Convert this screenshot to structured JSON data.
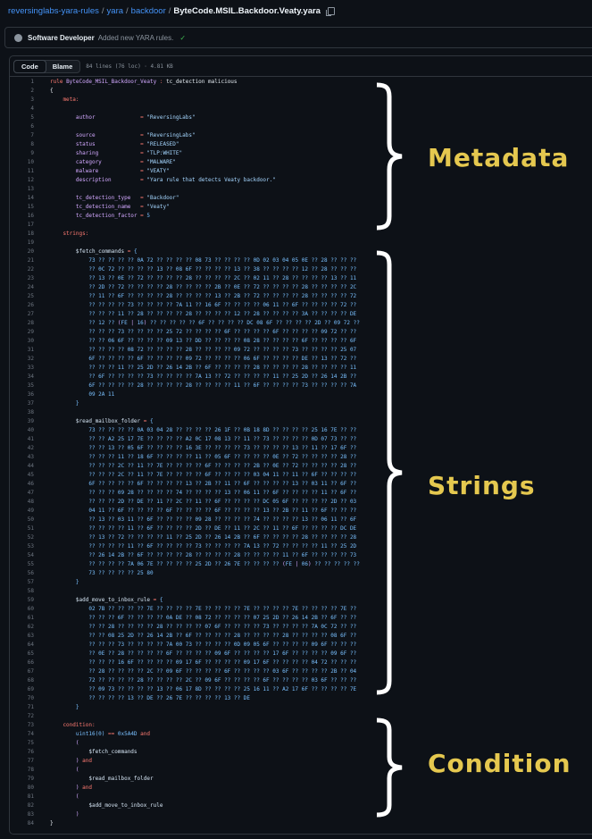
{
  "breadcrumb": {
    "repo": "reversinglabs-yara-rules",
    "dir1": "yara",
    "dir2": "backdoor",
    "file": "ByteCode.MSIL.Backdoor.Veaty.yara",
    "sep": "/"
  },
  "commit": {
    "author": "Software Developer",
    "message": "Added new YARA rules.",
    "check": "✓"
  },
  "code_header": {
    "tabs": [
      "Code",
      "Blame"
    ],
    "active_tab": "Code",
    "info": "84 lines (76 loc) · 4.81 KB"
  },
  "annotations": {
    "metadata": "Metadata",
    "strings": "Strings",
    "condition": "Condition",
    "color": "#e5c84f"
  },
  "code_lines": [
    [
      [
        "k",
        "rule "
      ],
      [
        "n",
        "ByteCode_MSIL_Backdoor_Veaty"
      ],
      [
        "o",
        " : "
      ],
      [
        "p",
        "tc_detection malicious"
      ]
    ],
    [
      [
        "p",
        "{"
      ]
    ],
    [
      [
        "k",
        "    meta:"
      ]
    ],
    [],
    [
      [
        "n",
        "        author              "
      ],
      [
        "o",
        "= "
      ],
      [
        "s",
        "\"ReversingLabs\""
      ]
    ],
    [],
    [
      [
        "n",
        "        source              "
      ],
      [
        "o",
        "= "
      ],
      [
        "s",
        "\"ReversingLabs\""
      ]
    ],
    [
      [
        "n",
        "        status              "
      ],
      [
        "o",
        "= "
      ],
      [
        "s",
        "\"RELEASED\""
      ]
    ],
    [
      [
        "n",
        "        sharing             "
      ],
      [
        "o",
        "= "
      ],
      [
        "s",
        "\"TLP:WHITE\""
      ]
    ],
    [
      [
        "n",
        "        category            "
      ],
      [
        "o",
        "= "
      ],
      [
        "s",
        "\"MALWARE\""
      ]
    ],
    [
      [
        "n",
        "        malware             "
      ],
      [
        "o",
        "= "
      ],
      [
        "s",
        "\"VEATY\""
      ]
    ],
    [
      [
        "n",
        "        description         "
      ],
      [
        "o",
        "= "
      ],
      [
        "s",
        "\"Yara rule that detects Veaty backdoor.\""
      ]
    ],
    [],
    [
      [
        "n",
        "        tc_detection_type   "
      ],
      [
        "o",
        "= "
      ],
      [
        "s",
        "\"Backdoor\""
      ]
    ],
    [
      [
        "n",
        "        tc_detection_name   "
      ],
      [
        "o",
        "= "
      ],
      [
        "s",
        "\"Veaty\""
      ]
    ],
    [
      [
        "n",
        "        tc_detection_factor "
      ],
      [
        "o",
        "= "
      ],
      [
        "h",
        "5"
      ]
    ],
    [],
    [
      [
        "k",
        "    strings:"
      ]
    ],
    [],
    [
      [
        "v",
        "        $fetch_commands "
      ],
      [
        "o",
        "= "
      ],
      [
        "b",
        "{"
      ]
    ],
    [
      [
        "h",
        "            73 ?? ?? ?? ?? 0A 72 ?? ?? ?? ?? 08 73 ?? ?? ?? ?? 0D 02 03 04 05 0E ?? 28 ?? ?? ??"
      ]
    ],
    [
      [
        "h",
        "            ?? 0C 72 ?? ?? ?? ?? 13 ?? 08 6F ?? ?? ?? ?? 13 ?? 38 ?? ?? ?? ?? 12 ?? 28 ?? ?? ??"
      ]
    ],
    [
      [
        "h",
        "            ?? 13 ?? 0E ?? 72 ?? ?? ?? ?? 28 ?? ?? ?? ?? 2C ?? 02 11 ?? 28 ?? ?? ?? ?? 13 ?? 11"
      ]
    ],
    [
      [
        "h",
        "            ?? 2D ?? 72 ?? ?? ?? ?? 28 ?? ?? ?? ?? 2B ?? 0E ?? 72 ?? ?? ?? ?? 28 ?? ?? ?? ?? 2C"
      ]
    ],
    [
      [
        "h",
        "            ?? 11 ?? 6F ?? ?? ?? ?? 28 ?? ?? ?? ?? 13 ?? 2B ?? 72 ?? ?? ?? ?? 28 ?? ?? ?? ?? 72"
      ]
    ],
    [
      [
        "h",
        "            ?? ?? ?? ?? 73 ?? ?? ?? ?? 7A 11 ?? 16 6F ?? ?? ?? ?? 06 11 ?? 6F ?? ?? ?? ?? 72 ??"
      ]
    ],
    [
      [
        "h",
        "            ?? ?? ?? 11 ?? 28 ?? ?? ?? ?? 28 ?? ?? ?? ?? 12 ?? 28 ?? ?? ?? ?? 3A ?? ?? ?? ?? DE"
      ]
    ],
    [
      [
        "h",
        "            ?? 12 ?? "
      ],
      [
        "q",
        "("
      ],
      [
        "h",
        "FE "
      ],
      [
        "q",
        "|"
      ],
      [
        "h",
        " 16"
      ],
      [
        "q",
        ")"
      ],
      [
        "h",
        " ?? ?? ?? ?? ?? 6F ?? ?? ?? ?? DC 08 6F ?? ?? ?? ?? 2D ?? 09 72 ??"
      ]
    ],
    [
      [
        "h",
        "            ?? ?? ?? 73 ?? ?? ?? ?? 25 72 ?? ?? ?? ?? 6F ?? ?? ?? ?? 6F ?? ?? ?? ?? 09 72 ?? ??"
      ]
    ],
    [
      [
        "h",
        "            ?? ?? 06 6F ?? ?? ?? ?? 09 13 ?? DD ?? ?? ?? ?? 08 28 ?? ?? ?? ?? 6F ?? ?? ?? ?? 6F"
      ]
    ],
    [
      [
        "h",
        "            ?? ?? ?? ?? 08 72 ?? ?? ?? ?? 28 ?? ?? ?? ?? 09 72 ?? ?? ?? ?? 73 ?? ?? ?? ?? 25 07"
      ]
    ],
    [
      [
        "h",
        "            6F ?? ?? ?? ?? 6F ?? ?? ?? ?? 09 72 ?? ?? ?? ?? 06 6F ?? ?? ?? ?? DE ?? 13 ?? 72 ??"
      ]
    ],
    [
      [
        "h",
        "            ?? ?? ?? 11 ?? 25 2D ?? 26 14 2B ?? 6F ?? ?? ?? ?? 28 ?? ?? ?? ?? 28 ?? ?? ?? ?? 11"
      ]
    ],
    [
      [
        "h",
        "            ?? 6F ?? ?? ?? ?? 73 ?? ?? ?? ?? 7A 13 ?? 72 ?? ?? ?? ?? 11 ?? 25 2D ?? 26 14 2B ??"
      ]
    ],
    [
      [
        "h",
        "            6F ?? ?? ?? ?? 28 ?? ?? ?? ?? 28 ?? ?? ?? ?? 11 ?? 6F ?? ?? ?? ?? 73 ?? ?? ?? ?? 7A"
      ]
    ],
    [
      [
        "h",
        "            09 2A 11"
      ]
    ],
    [
      [
        "b",
        "        }"
      ]
    ],
    [],
    [
      [
        "v",
        "        $read_mailbox_folder "
      ],
      [
        "o",
        "= "
      ],
      [
        "b",
        "{"
      ]
    ],
    [
      [
        "h",
        "            73 ?? ?? ?? ?? 0A 03 04 28 ?? ?? ?? ?? 26 1F ?? 0B 18 8D ?? ?? ?? ?? 25 16 7E ?? ??"
      ]
    ],
    [
      [
        "h",
        "            ?? ?? A2 25 17 7E ?? ?? ?? ?? A2 0C 17 08 13 ?? 11 ?? 73 ?? ?? ?? ?? 0D 07 73 ?? ??"
      ]
    ],
    [
      [
        "h",
        "            ?? ?? 13 ?? 05 6F ?? ?? ?? ?? 16 3E ?? ?? ?? ?? 73 ?? ?? ?? ?? 13 ?? 11 ?? 17 6F ??"
      ]
    ],
    [
      [
        "h",
        "            ?? ?? ?? 11 ?? 18 6F ?? ?? ?? ?? 11 ?? 05 6F ?? ?? ?? ?? 0E ?? 72 ?? ?? ?? ?? 28 ??"
      ]
    ],
    [
      [
        "h",
        "            ?? ?? ?? 2C ?? 11 ?? 7E ?? ?? ?? ?? 6F ?? ?? ?? ?? 2B ?? 0E ?? 72 ?? ?? ?? ?? 28 ??"
      ]
    ],
    [
      [
        "h",
        "            ?? ?? ?? 2C ?? 11 ?? 7E ?? ?? ?? ?? 6F ?? ?? ?? ?? 03 04 11 ?? 11 ?? 6F ?? ?? ?? ??"
      ]
    ],
    [
      [
        "h",
        "            6F ?? ?? ?? ?? 6F ?? ?? ?? ?? 13 ?? 2B ?? 11 ?? 6F ?? ?? ?? ?? 13 ?? 03 11 ?? 6F ??"
      ]
    ],
    [
      [
        "h",
        "            ?? ?? ?? 09 28 ?? ?? ?? ?? 74 ?? ?? ?? ?? 13 ?? 06 11 ?? 6F ?? ?? ?? ?? 11 ?? 6F ??"
      ]
    ],
    [
      [
        "h",
        "            ?? ?? ?? 2D ?? DE ?? 11 ?? 2C ?? 11 ?? 6F ?? ?? ?? ?? DC 05 6F ?? ?? ?? ?? 2D ?? 03"
      ]
    ],
    [
      [
        "h",
        "            04 11 ?? 6F ?? ?? ?? ?? 6F ?? ?? ?? ?? 6F ?? ?? ?? ?? 13 ?? 2B ?? 11 ?? 6F ?? ?? ??"
      ]
    ],
    [
      [
        "h",
        "            ?? 13 ?? 03 11 ?? 6F ?? ?? ?? ?? 09 28 ?? ?? ?? ?? 74 ?? ?? ?? ?? 13 ?? 06 11 ?? 6F"
      ]
    ],
    [
      [
        "h",
        "            ?? ?? ?? ?? 11 ?? 6F ?? ?? ?? ?? 2D ?? DE ?? 11 ?? 2C ?? 11 ?? 6F ?? ?? ?? ?? DC DE"
      ]
    ],
    [
      [
        "h",
        "            ?? 13 ?? 72 ?? ?? ?? ?? 11 ?? 25 2D ?? 26 14 2B ?? 6F ?? ?? ?? ?? 28 ?? ?? ?? ?? 28"
      ]
    ],
    [
      [
        "h",
        "            ?? ?? ?? ?? 11 ?? 6F ?? ?? ?? ?? 73 ?? ?? ?? ?? 7A 13 ?? 72 ?? ?? ?? ?? 11 ?? 25 2D"
      ]
    ],
    [
      [
        "h",
        "            ?? 26 14 2B ?? 6F ?? ?? ?? ?? 28 ?? ?? ?? ?? 28 ?? ?? ?? ?? 11 ?? 6F ?? ?? ?? ?? 73"
      ]
    ],
    [
      [
        "h",
        "            ?? ?? ?? ?? 7A 06 7E ?? ?? ?? ?? 25 2D ?? 26 7E ?? ?? ?? ?? "
      ],
      [
        "q",
        "("
      ],
      [
        "h",
        "FE "
      ],
      [
        "q",
        "|"
      ],
      [
        "h",
        " 06"
      ],
      [
        "q",
        ")"
      ],
      [
        "h",
        " ?? ?? ?? ?? ??"
      ]
    ],
    [
      [
        "h",
        "            73 ?? ?? ?? ?? 25 80"
      ]
    ],
    [
      [
        "b",
        "        }"
      ]
    ],
    [],
    [
      [
        "v",
        "        $add_move_to_inbox_rule "
      ],
      [
        "o",
        "= "
      ],
      [
        "b",
        "{"
      ]
    ],
    [
      [
        "h",
        "            02 7B ?? ?? ?? ?? 7E ?? ?? ?? ?? 7E ?? ?? ?? ?? 7E ?? ?? ?? ?? 7E ?? ?? ?? ?? 7E ??"
      ]
    ],
    [
      [
        "h",
        "            ?? ?? ?? 6F ?? ?? ?? ?? 0A DE ?? 08 72 ?? ?? ?? ?? 07 25 2D ?? 26 14 2B ?? 6F ?? ??"
      ]
    ],
    [
      [
        "h",
        "            ?? ?? 28 ?? ?? ?? ?? 28 ?? ?? ?? ?? 07 6F ?? ?? ?? ?? 73 ?? ?? ?? ?? 7A 0C 72 ?? ??"
      ]
    ],
    [
      [
        "h",
        "            ?? ?? 08 25 2D ?? 26 14 2B ?? 6F ?? ?? ?? ?? 28 ?? ?? ?? ?? 28 ?? ?? ?? ?? 08 6F ??"
      ]
    ],
    [
      [
        "h",
        "            ?? ?? ?? 73 ?? ?? ?? ?? 7A 00 73 ?? ?? ?? ?? 0D 09 05 6F ?? ?? ?? ?? 09 6F ?? ?? ??"
      ]
    ],
    [
      [
        "h",
        "            ?? 0E ?? 28 ?? ?? ?? ?? 6F ?? ?? ?? ?? 09 6F ?? ?? ?? ?? 17 6F ?? ?? ?? ?? 09 6F ??"
      ]
    ],
    [
      [
        "h",
        "            ?? ?? ?? 16 6F ?? ?? ?? ?? 09 17 6F ?? ?? ?? ?? 09 17 6F ?? ?? ?? ?? 04 72 ?? ?? ??"
      ]
    ],
    [
      [
        "h",
        "            ?? 28 ?? ?? ?? ?? 2C ?? 09 6F ?? ?? ?? ?? 6F ?? ?? ?? ?? 03 6F ?? ?? ?? ?? 2B ?? 04"
      ]
    ],
    [
      [
        "h",
        "            72 ?? ?? ?? ?? 28 ?? ?? ?? ?? 2C ?? 09 6F ?? ?? ?? ?? 6F ?? ?? ?? ?? 03 6F ?? ?? ??"
      ]
    ],
    [
      [
        "h",
        "            ?? 09 73 ?? ?? ?? ?? 13 ?? 06 17 8D ?? ?? ?? ?? 25 16 11 ?? A2 17 6F ?? ?? ?? ?? 7E"
      ]
    ],
    [
      [
        "h",
        "            ?? ?? ?? ?? 13 ?? DE ?? 26 7E ?? ?? ?? ?? 13 ?? DE"
      ]
    ],
    [
      [
        "b",
        "        }"
      ]
    ],
    [],
    [
      [
        "k",
        "    condition:"
      ]
    ],
    [
      [
        "h",
        "        uint16(0) "
      ],
      [
        "o",
        "== "
      ],
      [
        "h",
        "0x5A4D "
      ],
      [
        "k",
        "and"
      ]
    ],
    [
      [
        "q",
        "        ("
      ]
    ],
    [
      [
        "v",
        "            $fetch_commands"
      ]
    ],
    [
      [
        "q",
        "        )"
      ],
      [
        "k",
        " and"
      ]
    ],
    [
      [
        "q",
        "        ("
      ]
    ],
    [
      [
        "v",
        "            $read_mailbox_folder"
      ]
    ],
    [
      [
        "q",
        "        )"
      ],
      [
        "k",
        " and"
      ]
    ],
    [
      [
        "q",
        "        ("
      ]
    ],
    [
      [
        "v",
        "            $add_move_to_inbox_rule"
      ]
    ],
    [
      [
        "q",
        "        )"
      ]
    ],
    [
      [
        "p",
        "}"
      ]
    ]
  ]
}
